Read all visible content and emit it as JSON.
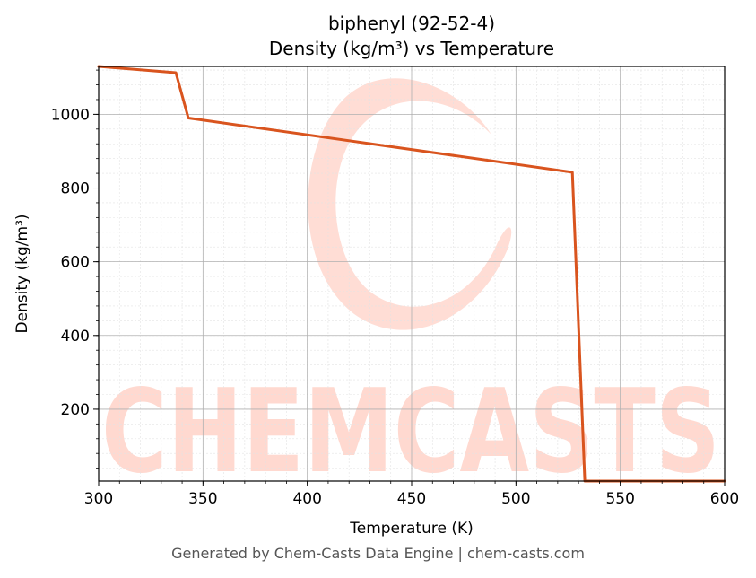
{
  "chart_data": {
    "type": "line",
    "title": "biphenyl (92-52-4)",
    "subtitle": "Density (kg/m³) vs Temperature",
    "xlabel": "Temperature (K)",
    "ylabel": "Density (kg/m³)",
    "xlim": [
      300,
      600
    ],
    "ylim": [
      5,
      1130
    ],
    "xticks": [
      300,
      350,
      400,
      450,
      500,
      550,
      600
    ],
    "yticks": [
      200,
      400,
      600,
      800,
      1000
    ],
    "grid": true,
    "series": [
      {
        "color": "#d9541e",
        "x": [
          300,
          337,
          343,
          527,
          533,
          600
        ],
        "y": [
          1130,
          1113,
          990,
          843,
          5,
          5
        ]
      }
    ]
  },
  "watermark": {
    "text": "CHEMCASTS",
    "color": "#ffd9d0"
  },
  "footer": "Generated by Chem-Casts Data Engine | chem-casts.com"
}
